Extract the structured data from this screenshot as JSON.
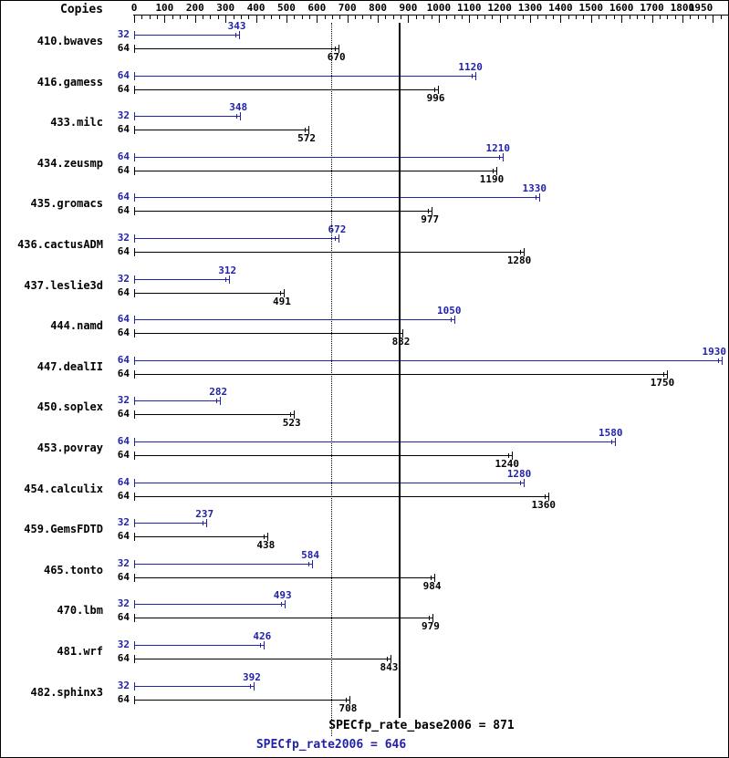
{
  "colors": {
    "peak": "#2222aa",
    "base": "#000000",
    "axis": "#000000"
  },
  "chart_data": {
    "type": "bar",
    "orientation": "horizontal",
    "copies_header": "Copies",
    "axis": {
      "min": 0,
      "max": 1950,
      "major_tick": 100,
      "minor_tick": 25,
      "labels": [
        "0",
        "100",
        "200",
        "300",
        "400",
        "500",
        "600",
        "700",
        "800",
        "900",
        "1000",
        "1100",
        "1200",
        "1300",
        "1400",
        "1500",
        "1600",
        "1700",
        "1800",
        "1950"
      ]
    },
    "series_legend": {
      "peak": "SPECfp_rate2006 (blue)",
      "base": "SPECfp_rate_base2006 (black)"
    },
    "reference_lines": {
      "base": {
        "label": "SPECfp_rate_base2006 = 871",
        "value": 871,
        "style": "solid"
      },
      "peak": {
        "label": "SPECfp_rate2006 = 646",
        "value": 646,
        "style": "dotted"
      }
    },
    "benchmarks": [
      {
        "name": "410.bwaves",
        "peak": {
          "copies": "32",
          "value": 343
        },
        "base": {
          "copies": "64",
          "value": 670
        }
      },
      {
        "name": "416.gamess",
        "peak": {
          "copies": "64",
          "value": 1120
        },
        "base": {
          "copies": "64",
          "value": 996
        }
      },
      {
        "name": "433.milc",
        "peak": {
          "copies": "32",
          "value": 348
        },
        "base": {
          "copies": "64",
          "value": 572
        }
      },
      {
        "name": "434.zeusmp",
        "peak": {
          "copies": "64",
          "value": 1210
        },
        "base": {
          "copies": "64",
          "value": 1190
        }
      },
      {
        "name": "435.gromacs",
        "peak": {
          "copies": "64",
          "value": 1330
        },
        "base": {
          "copies": "64",
          "value": 977
        }
      },
      {
        "name": "436.cactusADM",
        "peak": {
          "copies": "32",
          "value": 672
        },
        "base": {
          "copies": "64",
          "value": 1280
        }
      },
      {
        "name": "437.leslie3d",
        "peak": {
          "copies": "32",
          "value": 312
        },
        "base": {
          "copies": "64",
          "value": 491
        }
      },
      {
        "name": "444.namd",
        "peak": {
          "copies": "64",
          "value": 1050
        },
        "base": {
          "copies": "64",
          "value": 882
        }
      },
      {
        "name": "447.dealII",
        "peak": {
          "copies": "64",
          "value": 1930
        },
        "base": {
          "copies": "64",
          "value": 1750
        }
      },
      {
        "name": "450.soplex",
        "peak": {
          "copies": "32",
          "value": 282
        },
        "base": {
          "copies": "64",
          "value": 523
        }
      },
      {
        "name": "453.povray",
        "peak": {
          "copies": "64",
          "value": 1580
        },
        "base": {
          "copies": "64",
          "value": 1240
        }
      },
      {
        "name": "454.calculix",
        "peak": {
          "copies": "64",
          "value": 1280
        },
        "base": {
          "copies": "64",
          "value": 1360
        }
      },
      {
        "name": "459.GemsFDTD",
        "peak": {
          "copies": "32",
          "value": 237
        },
        "base": {
          "copies": "64",
          "value": 438
        }
      },
      {
        "name": "465.tonto",
        "peak": {
          "copies": "32",
          "value": 584
        },
        "base": {
          "copies": "64",
          "value": 984
        }
      },
      {
        "name": "470.lbm",
        "peak": {
          "copies": "32",
          "value": 493
        },
        "base": {
          "copies": "64",
          "value": 979
        }
      },
      {
        "name": "481.wrf",
        "peak": {
          "copies": "32",
          "value": 426
        },
        "base": {
          "copies": "64",
          "value": 843
        }
      },
      {
        "name": "482.sphinx3",
        "peak": {
          "copies": "32",
          "value": 392
        },
        "base": {
          "copies": "64",
          "value": 708
        }
      }
    ]
  }
}
